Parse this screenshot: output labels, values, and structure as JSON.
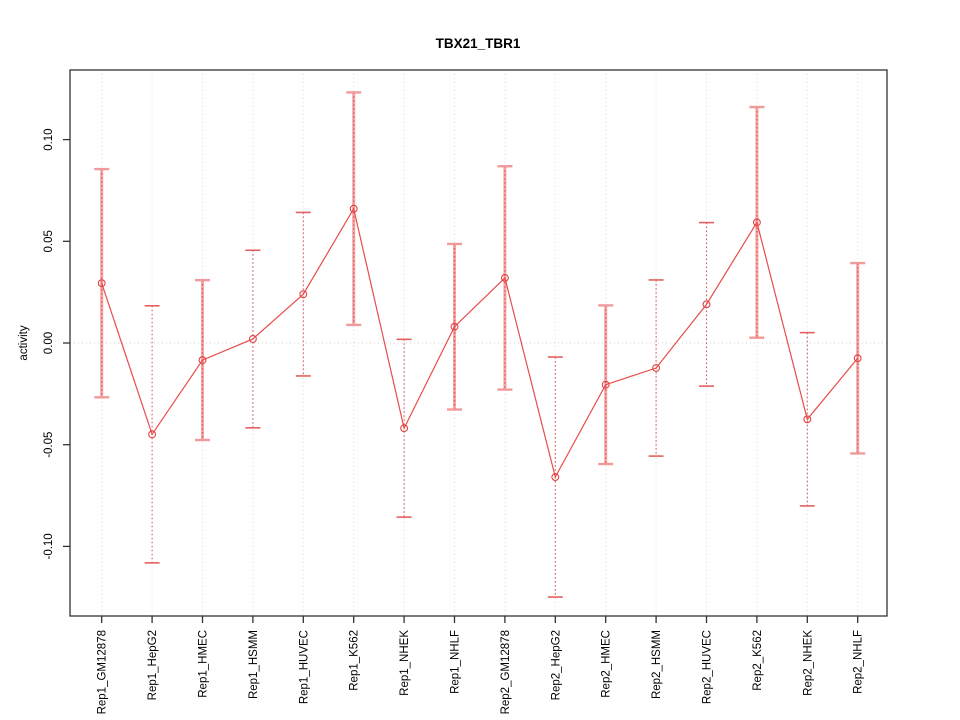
{
  "chart_data": {
    "type": "line",
    "subtype": "means-with-error-bars",
    "title": "TBX21_TBR1",
    "xlabel": "",
    "ylabel": "activity",
    "categories": [
      "Rep1_GM12878",
      "Rep1_HepG2",
      "Rep1_HMEC",
      "Rep1_HSMM",
      "Rep1_HUVEC",
      "Rep1_K562",
      "Rep1_NHEK",
      "Rep1_NHLF",
      "Rep2_GM12878",
      "Rep2_HepG2",
      "Rep2_HMEC",
      "Rep2_HSMM",
      "Rep2_HUVEC",
      "Rep2_K562",
      "Rep2_NHEK",
      "Rep2_NHLF"
    ],
    "series": [
      {
        "name": "activity",
        "means": [
          0.0294,
          -0.0449,
          -0.0084,
          0.002,
          0.024,
          0.066,
          -0.0419,
          0.008,
          0.032,
          -0.0659,
          -0.0205,
          -0.0123,
          0.019,
          0.0593,
          -0.0375,
          -0.0075
        ],
        "upper": [
          0.0855,
          0.0183,
          0.0309,
          0.0456,
          0.0642,
          0.1232,
          0.0018,
          0.0487,
          0.0869,
          -0.0069,
          0.0185,
          0.031,
          0.0592,
          0.116,
          0.0051,
          0.0393
        ],
        "lower": [
          -0.0267,
          -0.1081,
          -0.0477,
          -0.0417,
          -0.0162,
          0.0089,
          -0.0856,
          -0.0327,
          -0.0229,
          -0.1249,
          -0.0595,
          -0.0556,
          -0.0212,
          0.0026,
          -0.0801,
          -0.0543
        ],
        "stem_style": [
          "band",
          "dotted",
          "band",
          "dotted",
          "dotted",
          "band",
          "dotted",
          "band",
          "band",
          "dotted",
          "band",
          "dotted",
          "dotted",
          "band",
          "dotted",
          "band"
        ]
      }
    ],
    "yticks": [
      "0.10",
      "0.05",
      "0.00",
      "-0.05",
      "-0.10"
    ],
    "ytick_values": [
      0.1,
      0.05,
      0.0,
      -0.05,
      -0.1
    ],
    "ylim": [
      -0.134,
      0.134
    ],
    "zero_reference_line": true,
    "grid": "vertical-dotted-per-category",
    "legend_position": "none",
    "colors": {
      "line": "#e84c4c",
      "point_stroke": "#df4444",
      "stem_band": "#f5a3a3",
      "stem_dotted": "#e05252",
      "cap_band": "#f29a9a",
      "cap_dotted": "#e46060",
      "gridline": "#dcdcdc",
      "zero_line": "#cfcfcf",
      "frame": "#333333"
    }
  }
}
